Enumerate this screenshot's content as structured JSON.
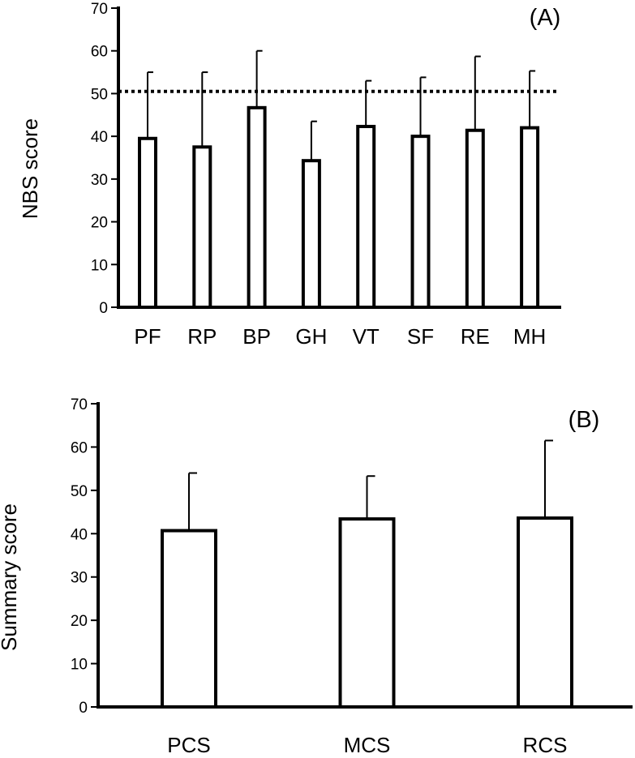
{
  "chart_data": [
    {
      "type": "bar",
      "panel_label": "(A)",
      "ylabel": "NBS score",
      "xlabel": "",
      "ylim": [
        0,
        70
      ],
      "yticks": [
        "0",
        "10",
        "20",
        "30",
        "40",
        "50",
        "60",
        "70"
      ],
      "categories": [
        "PF",
        "RP",
        "BP",
        "GH",
        "VT",
        "SF",
        "RE",
        "MH"
      ],
      "values": [
        39.5,
        37.5,
        46.7,
        34.3,
        42.3,
        40.0,
        41.4,
        42.0
      ],
      "error_upper": [
        55.0,
        55.0,
        60.0,
        43.5,
        53.0,
        53.8,
        58.7,
        55.3
      ],
      "reference_line": 50.5,
      "grid": false
    },
    {
      "type": "bar",
      "panel_label": "(B)",
      "ylabel": "Summary score",
      "xlabel": "",
      "ylim": [
        0,
        70
      ],
      "yticks": [
        "0",
        "10",
        "20",
        "30",
        "40",
        "50",
        "60",
        "70"
      ],
      "categories": [
        "PCS",
        "MCS",
        "RCS"
      ],
      "values": [
        40.7,
        43.4,
        43.6
      ],
      "error_upper": [
        54.0,
        53.3,
        61.5
      ],
      "grid": false
    }
  ]
}
